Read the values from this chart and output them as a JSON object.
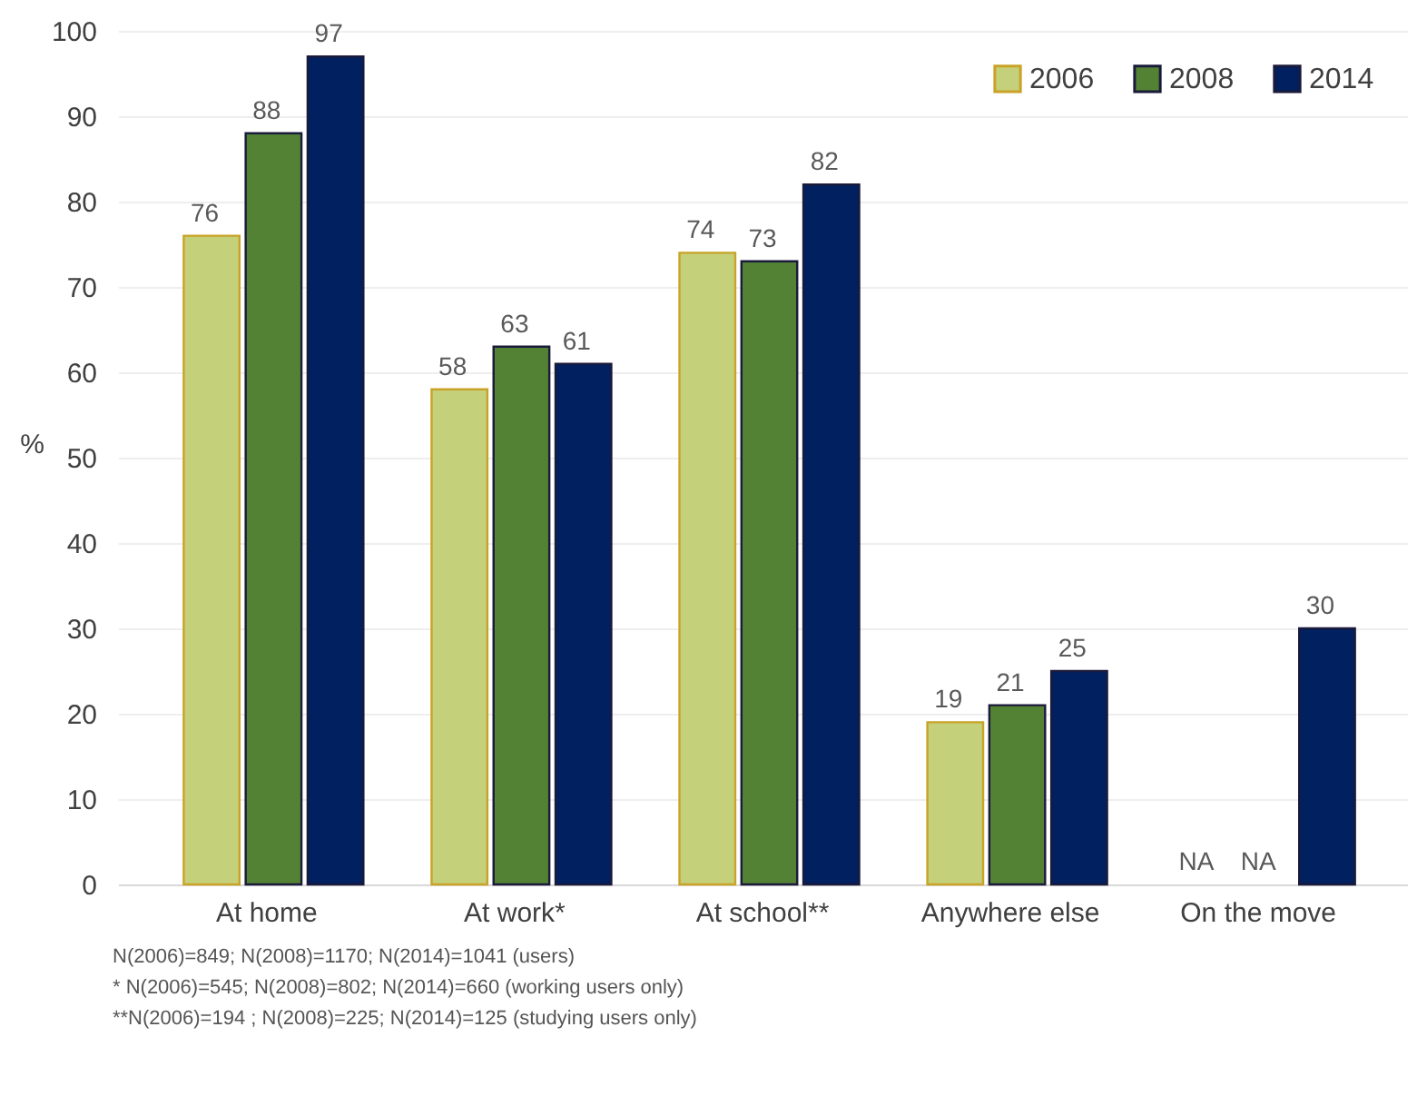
{
  "chart_data": {
    "type": "bar",
    "ylabel": "%",
    "categories": [
      "At home",
      "At work*",
      "At school**",
      "Anywhere else",
      "On the move"
    ],
    "series": [
      {
        "name": "2006",
        "color": "#c4d17a",
        "values": [
          76,
          58,
          74,
          19,
          null
        ],
        "value_labels": [
          "76",
          "58",
          "74",
          "19",
          "NA"
        ]
      },
      {
        "name": "2008",
        "color": "#548235",
        "values": [
          88,
          63,
          73,
          21,
          null
        ],
        "value_labels": [
          "88",
          "63",
          "73",
          "21",
          "NA"
        ]
      },
      {
        "name": "2014",
        "color": "#002060",
        "values": [
          97,
          61,
          82,
          25,
          30
        ],
        "value_labels": [
          "97",
          "61",
          "82",
          "25",
          "30"
        ]
      }
    ],
    "ylim": [
      0,
      100
    ],
    "yticks": [
      0,
      10,
      20,
      30,
      40,
      50,
      60,
      70,
      80,
      90,
      100
    ],
    "grid": "y",
    "legend": "top right",
    "annotations": [
      "N(2006)=849; N(2008)=1170; N(2014)=1041 (users)",
      "* N(2006)=545; N(2008)=802;  N(2014)=660 (working users only)",
      "**N(2006)=194 ; N(2008)=225; N(2014)=125 (studying users only)"
    ]
  }
}
